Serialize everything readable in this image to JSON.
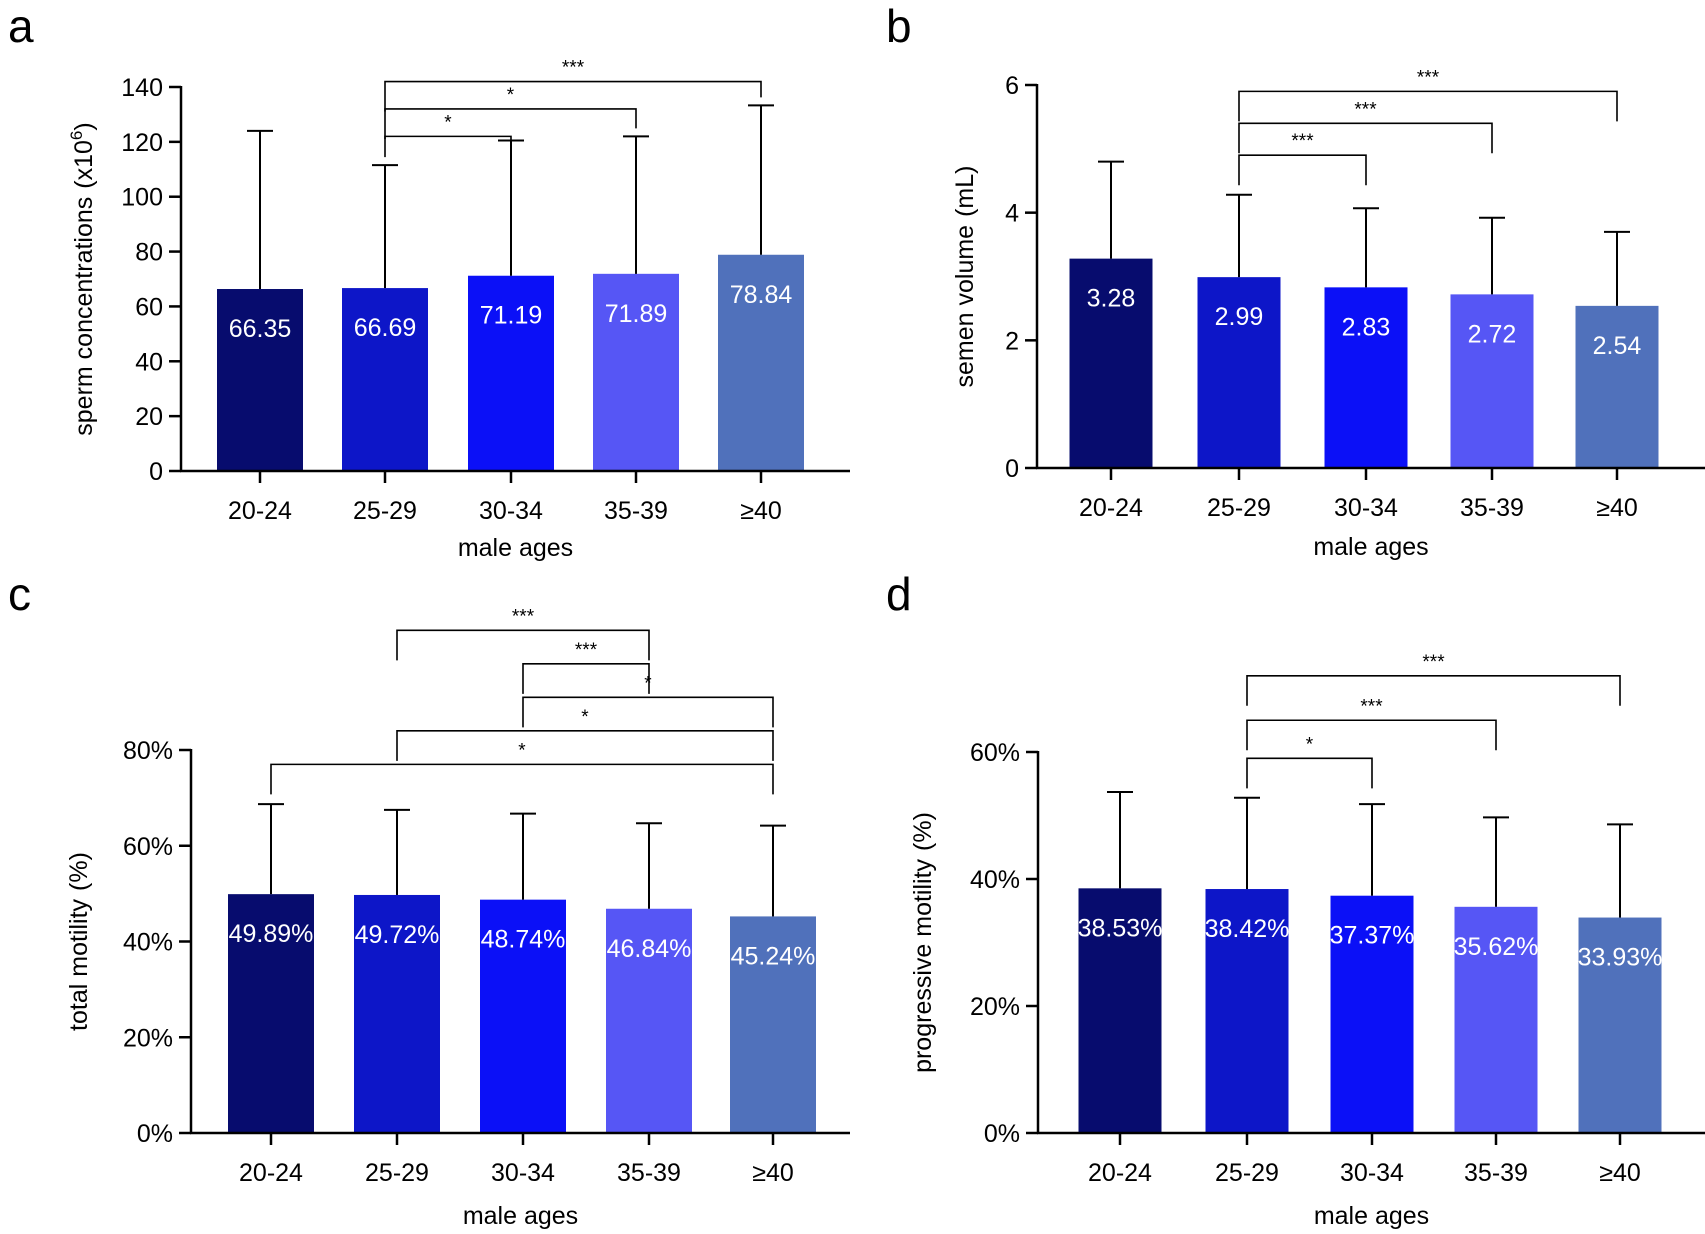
{
  "figure": {
    "title": ""
  },
  "chart_data": [
    {
      "panel": "a",
      "type": "bar",
      "categories": [
        "20-24",
        "25-29",
        "30-34",
        "35-39",
        "≥40"
      ],
      "values": [
        66.35,
        66.69,
        71.19,
        71.89,
        78.84
      ],
      "value_labels": [
        "66.35",
        "66.69",
        "71.19",
        "71.89",
        "78.84"
      ],
      "error_upper": [
        124,
        111.5,
        120.5,
        122,
        133.3
      ],
      "colors": [
        "#070c6e",
        "#0d16c8",
        "#0b10f7",
        "#5656f5",
        "#5071bb"
      ],
      "ylim": [
        0,
        140
      ],
      "yticks": [
        0,
        20,
        40,
        60,
        80,
        100,
        120,
        140
      ],
      "ytick_labels": [
        "0",
        "20",
        "40",
        "60",
        "80",
        "100",
        "120",
        "140"
      ],
      "xlabel": "male ages",
      "ylabel": "sperm concentrations",
      "ylabel_unit": "(x10",
      "ylabel_exp": "6",
      "ylabel_unit_close": ")",
      "significance": [
        {
          "from": 1,
          "to": 2,
          "label": "*",
          "y": 122
        },
        {
          "from": 1,
          "to": 3,
          "label": "*",
          "y": 132
        },
        {
          "from": 1,
          "to": 4,
          "label": "***",
          "y": 142
        }
      ]
    },
    {
      "panel": "b",
      "type": "bar",
      "categories": [
        "20-24",
        "25-29",
        "30-34",
        "35-39",
        "≥40"
      ],
      "values": [
        3.28,
        2.99,
        2.83,
        2.72,
        2.54
      ],
      "value_labels": [
        "3.28",
        "2.99",
        "2.83",
        "2.72",
        "2.54"
      ],
      "error_upper": [
        4.8,
        4.28,
        4.07,
        3.92,
        3.7
      ],
      "colors": [
        "#070c6e",
        "#0d16c8",
        "#0b10f7",
        "#5656f5",
        "#5071bb"
      ],
      "ylim": [
        0,
        6
      ],
      "yticks": [
        0,
        2,
        4,
        6
      ],
      "ytick_labels": [
        "0",
        "2",
        "4",
        "6"
      ],
      "xlabel": "male ages",
      "ylabel": "semen volume",
      "ylabel_unit": "(mL)",
      "significance": [
        {
          "from": 1,
          "to": 2,
          "label": "***",
          "y": 4.9
        },
        {
          "from": 1,
          "to": 3,
          "label": "***",
          "y": 5.4
        },
        {
          "from": 1,
          "to": 4,
          "label": "***",
          "y": 5.9
        }
      ]
    },
    {
      "panel": "c",
      "type": "bar",
      "categories": [
        "20-24",
        "25-29",
        "30-34",
        "35-39",
        "≥40"
      ],
      "values": [
        49.89,
        49.72,
        48.74,
        46.84,
        45.24
      ],
      "value_labels": [
        "49.89%",
        "49.72%",
        "48.74%",
        "46.84%",
        "45.24%"
      ],
      "error_upper": [
        68.7,
        67.5,
        66.7,
        64.7,
        64.2
      ],
      "colors": [
        "#070c6e",
        "#0d16c8",
        "#0b10f7",
        "#5656f5",
        "#5071bb"
      ],
      "ylim": [
        0,
        80
      ],
      "yticks": [
        0,
        20,
        40,
        60,
        80
      ],
      "ytick_labels": [
        "0%",
        "20%",
        "40%",
        "60%",
        "80%"
      ],
      "xlabel": "male ages",
      "ylabel": "total motility",
      "ylabel_unit": "(%)",
      "significance": [
        {
          "from": 0,
          "to": 4,
          "label": "*",
          "y": 77
        },
        {
          "from": 1,
          "to": 4,
          "label": "*",
          "y": 84
        },
        {
          "from": 2,
          "to": 4,
          "label": "*",
          "y": 91
        },
        {
          "from": 2,
          "to": 3,
          "label": "***",
          "y": 98
        },
        {
          "from": 1,
          "to": 3,
          "label": "***",
          "y": 105
        }
      ]
    },
    {
      "panel": "d",
      "type": "bar",
      "categories": [
        "20-24",
        "25-29",
        "30-34",
        "35-39",
        "≥40"
      ],
      "values": [
        38.53,
        38.42,
        37.37,
        35.62,
        33.93
      ],
      "value_labels": [
        "38.53%",
        "38.42%",
        "37.37%",
        "35.62%",
        "33.93%"
      ],
      "error_upper": [
        53.7,
        52.8,
        51.8,
        49.7,
        48.6
      ],
      "colors": [
        "#070c6e",
        "#0d16c8",
        "#0b10f7",
        "#5656f5",
        "#5071bb"
      ],
      "ylim": [
        0,
        60
      ],
      "yticks": [
        0,
        20,
        40,
        60
      ],
      "ytick_labels": [
        "0%",
        "20%",
        "40%",
        "60%"
      ],
      "xlabel": "male ages",
      "ylabel": "progressive motility",
      "ylabel_unit": "(%)",
      "significance": [
        {
          "from": 1,
          "to": 2,
          "label": "*",
          "y": 59
        },
        {
          "from": 1,
          "to": 3,
          "label": "***",
          "y": 65
        },
        {
          "from": 1,
          "to": 4,
          "label": "***",
          "y": 72
        }
      ]
    }
  ]
}
